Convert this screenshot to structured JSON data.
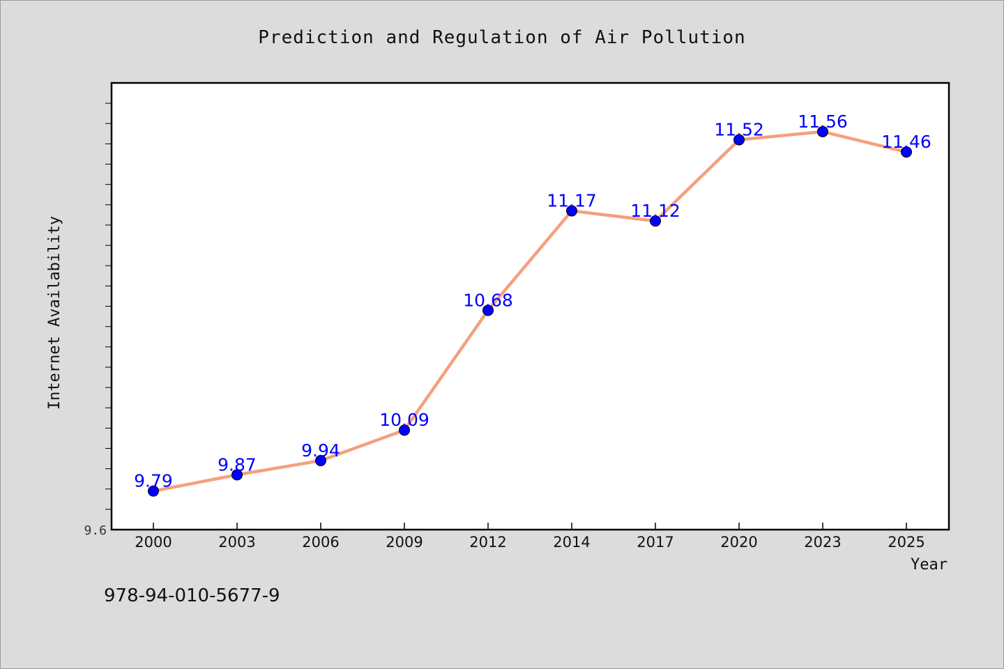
{
  "chart_data": {
    "type": "line",
    "title": "Prediction and Regulation of Air Pollution",
    "xlabel": "Year",
    "ylabel": "Internet Availability",
    "categories": [
      "2000",
      "2003",
      "2006",
      "2009",
      "2012",
      "2014",
      "2017",
      "2020",
      "2023",
      "2025"
    ],
    "series": [
      {
        "values": [
          9.79,
          9.87,
          9.94,
          10.09,
          10.68,
          11.17,
          11.12,
          11.52,
          11.56,
          11.46
        ],
        "labels": [
          "9.79",
          "9.87",
          "9.94",
          "10.09",
          "10.68",
          "11.17",
          "11.12",
          "11.52",
          "11.56",
          "11.46"
        ]
      }
    ],
    "ylim": [
      9.6,
      11.8
    ],
    "ytick_label": "9.6",
    "minor_tick_step": 0.1,
    "grid": false,
    "colors": {
      "background": "#dcdcdc",
      "plot_area": "#ffffff",
      "line": "#f4a07e",
      "marker": "#0000ff",
      "data_label": "#0000ff"
    }
  },
  "footnote": "978-94-010-5677-9"
}
